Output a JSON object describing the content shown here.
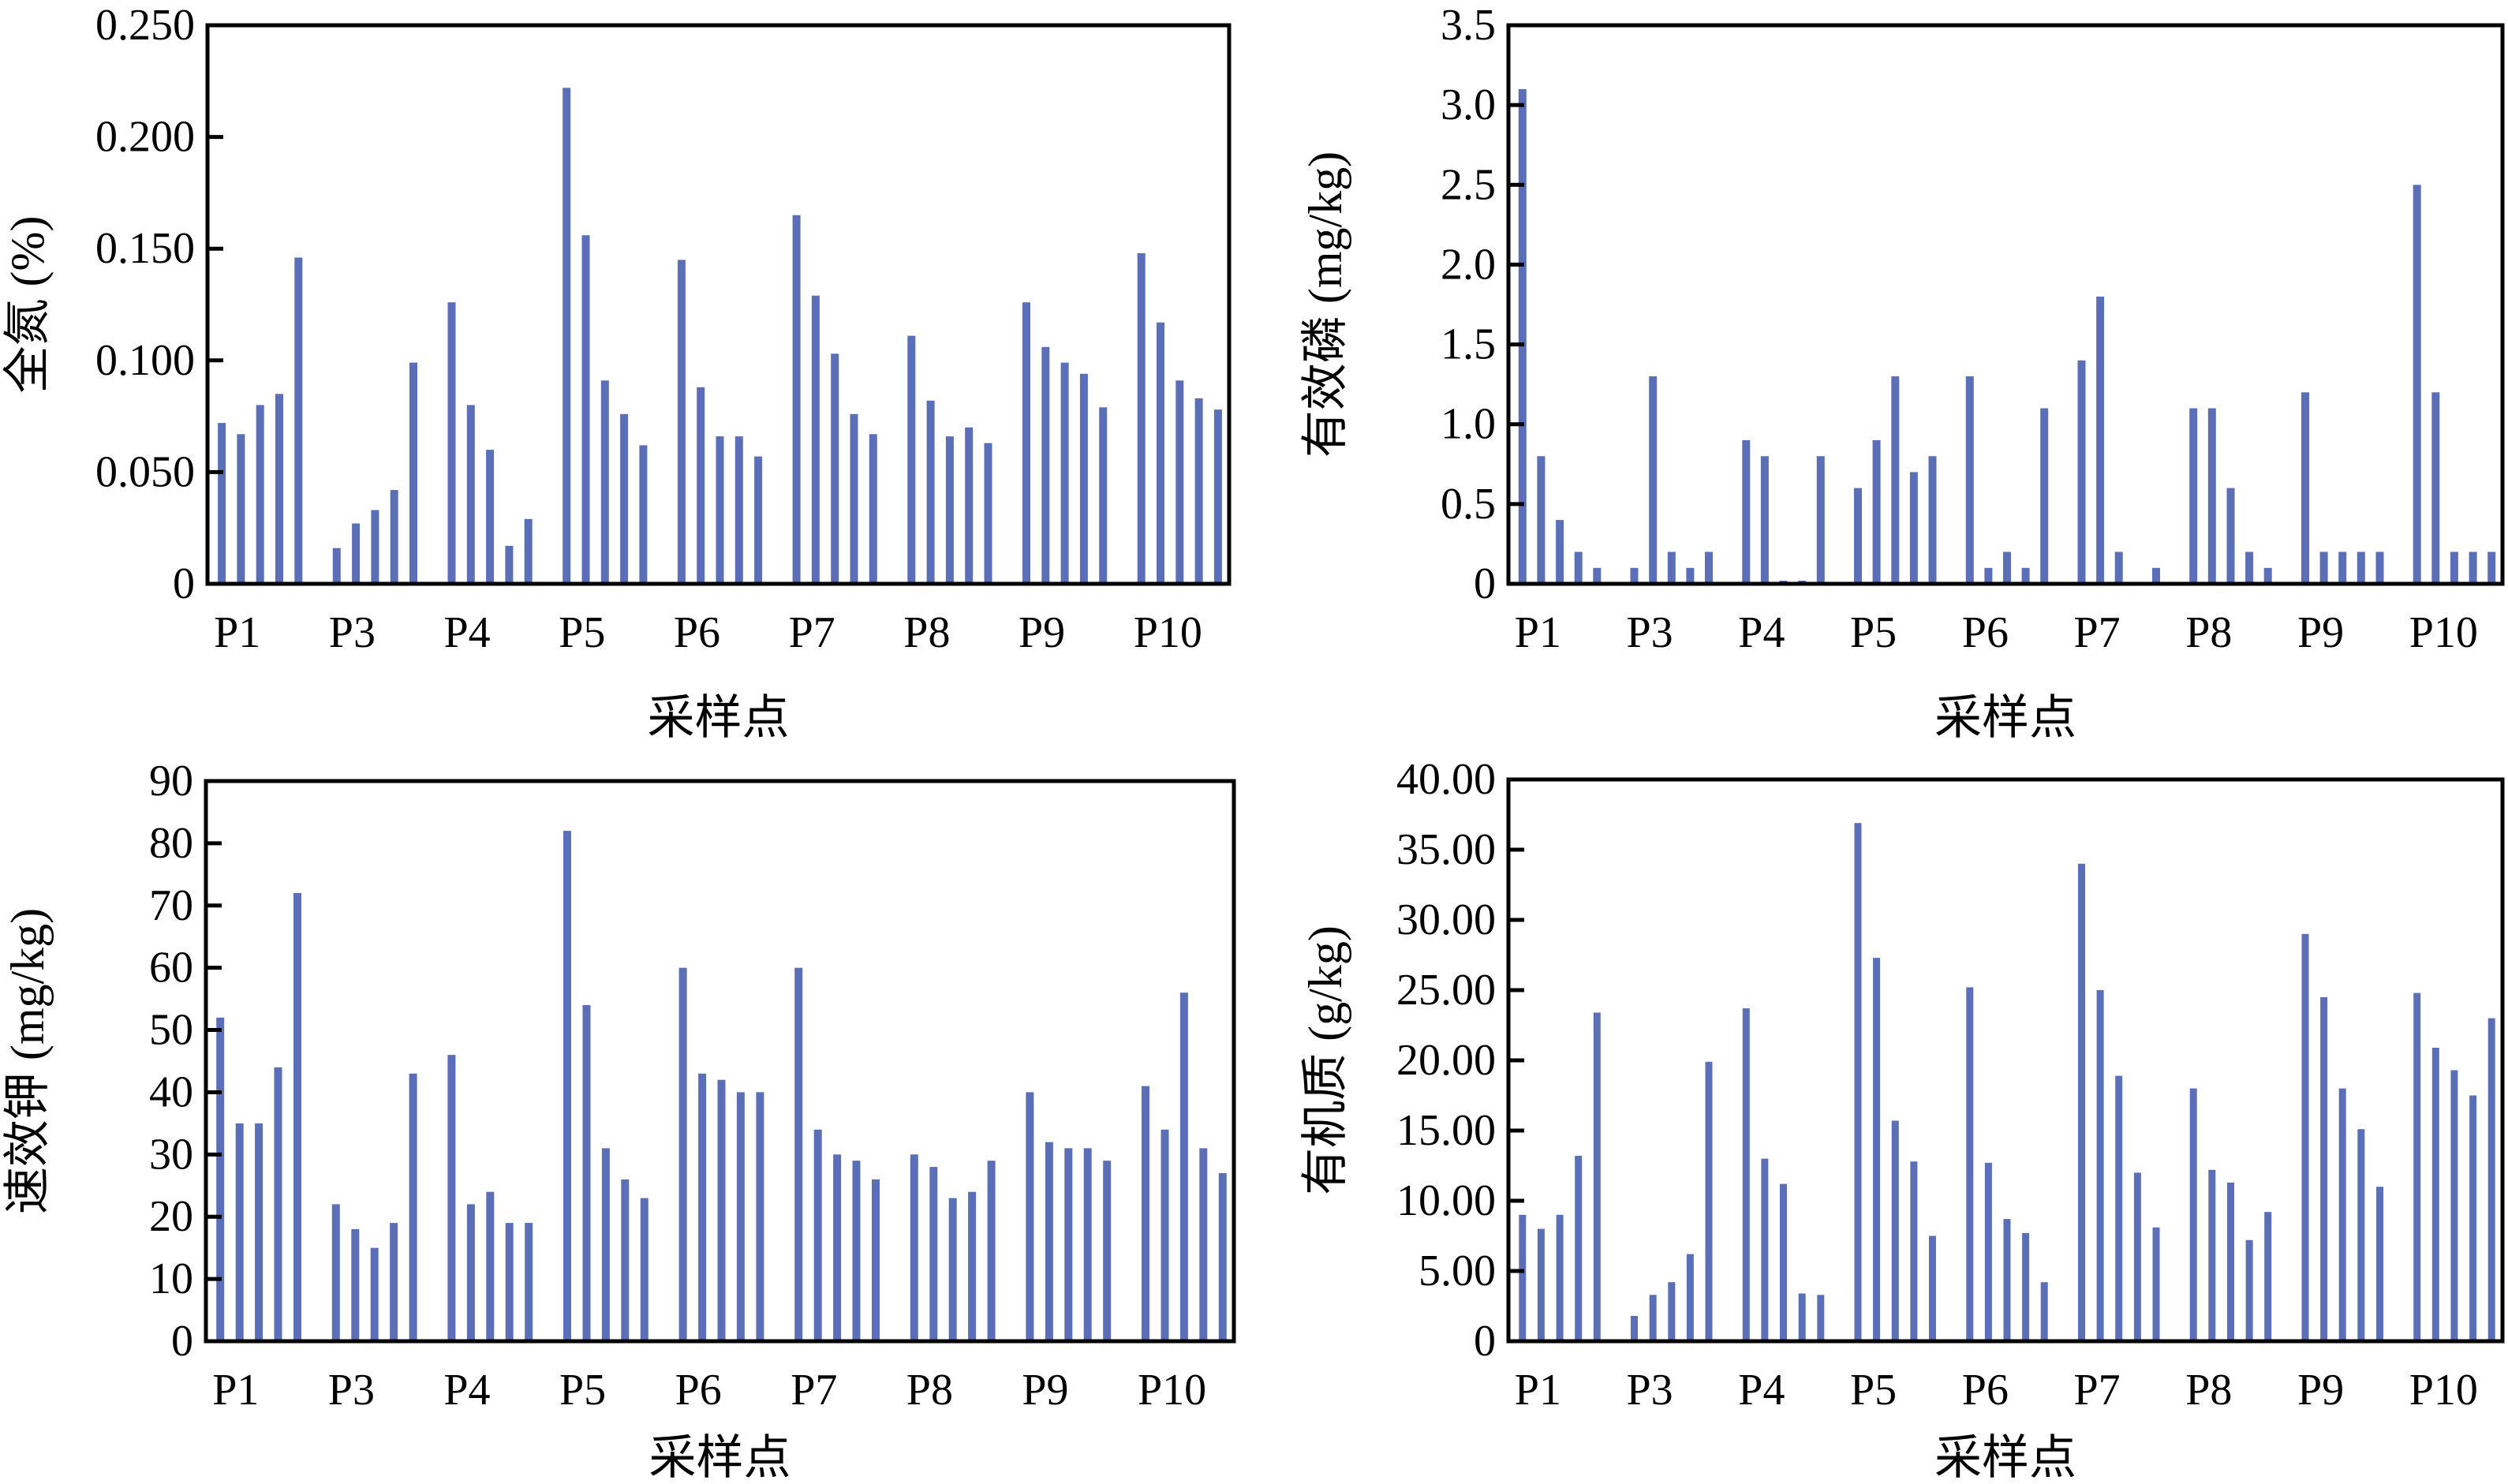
{
  "chart_data": [
    {
      "type": "bar",
      "panel": "top-left",
      "title": "",
      "xlabel": "采样点",
      "ylabel": "全氮 (%)",
      "ylim": [
        0,
        0.25
      ],
      "yticks": [
        "0",
        "0.050",
        "0.100",
        "0.150",
        "0.200",
        "0.250"
      ],
      "ytick_values": [
        0,
        0.05,
        0.1,
        0.15,
        0.2,
        0.25
      ],
      "categories": [
        "P1",
        "P3",
        "P4",
        "P5",
        "P6",
        "P7",
        "P8",
        "P9",
        "P10"
      ],
      "bars_per_group": 5,
      "color": "#5a6fb7",
      "grid": false,
      "values": [
        [
          0.072,
          0.067,
          0.08,
          0.085,
          0.146
        ],
        [
          0.016,
          0.027,
          0.033,
          0.042,
          0.099
        ],
        [
          0.126,
          0.08,
          0.06,
          0.017,
          0.029
        ],
        [
          0.222,
          0.156,
          0.091,
          0.076,
          0.062
        ],
        [
          0.145,
          0.088,
          0.066,
          0.066,
          0.057
        ],
        [
          0.165,
          0.129,
          0.103,
          0.076,
          0.067
        ],
        [
          0.111,
          0.082,
          0.066,
          0.07,
          0.063
        ],
        [
          0.126,
          0.106,
          0.099,
          0.094,
          0.079
        ],
        [
          0.148,
          0.117,
          0.091,
          0.083,
          0.078
        ]
      ]
    },
    {
      "type": "bar",
      "panel": "top-right",
      "title": "",
      "xlabel": "采样点",
      "ylabel": "有效磷 (mg/kg)",
      "ylim": [
        0,
        3.5
      ],
      "yticks": [
        "0",
        "0.5",
        "1.0",
        "1.5",
        "2.0",
        "2.5",
        "3.0",
        "3.5"
      ],
      "ytick_values": [
        0,
        0.5,
        1.0,
        1.5,
        2.0,
        2.5,
        3.0,
        3.5
      ],
      "categories": [
        "P1",
        "P3",
        "P4",
        "P5",
        "P6",
        "P7",
        "P8",
        "P9",
        "P10"
      ],
      "bars_per_group": 5,
      "color": "#5a6fb7",
      "grid": false,
      "values": [
        [
          3.1,
          0.8,
          0.4,
          0.2,
          0.1
        ],
        [
          0.1,
          1.3,
          0.2,
          0.1,
          0.2
        ],
        [
          0.9,
          0.8,
          0.02,
          0.02,
          0.8
        ],
        [
          0.6,
          0.9,
          1.3,
          0.7,
          0.8
        ],
        [
          1.3,
          0.1,
          0.2,
          0.1,
          1.1
        ],
        [
          1.4,
          1.8,
          0.2,
          0,
          0.1
        ],
        [
          1.1,
          1.1,
          0.6,
          0.2,
          0.1
        ],
        [
          1.2,
          0.2,
          0.2,
          0.2,
          0.2
        ],
        [
          2.5,
          1.2,
          0.2,
          0.2,
          0.2
        ]
      ]
    },
    {
      "type": "bar",
      "panel": "bottom-left",
      "title": "",
      "xlabel": "采样点",
      "ylabel": "速效钾 (mg/kg)",
      "ylim": [
        0,
        90
      ],
      "yticks": [
        "0",
        "10",
        "20",
        "30",
        "40",
        "50",
        "60",
        "70",
        "80",
        "90"
      ],
      "ytick_values": [
        0,
        10,
        20,
        30,
        40,
        50,
        60,
        70,
        80,
        90
      ],
      "categories": [
        "P1",
        "P3",
        "P4",
        "P5",
        "P6",
        "P7",
        "P8",
        "P9",
        "P10"
      ],
      "bars_per_group": 5,
      "color": "#5a6fb7",
      "grid": false,
      "values": [
        [
          52,
          35,
          35,
          44,
          72
        ],
        [
          22,
          18,
          15,
          19,
          43
        ],
        [
          46,
          22,
          24,
          19,
          19
        ],
        [
          82,
          54,
          31,
          26,
          23
        ],
        [
          60,
          43,
          42,
          40,
          40
        ],
        [
          60,
          34,
          30,
          29,
          26
        ],
        [
          30,
          28,
          23,
          24,
          29
        ],
        [
          40,
          32,
          31,
          31,
          29
        ],
        [
          41,
          34,
          56,
          31,
          27
        ]
      ]
    },
    {
      "type": "bar",
      "panel": "bottom-right",
      "title": "",
      "xlabel": "采样点",
      "ylabel": "有机质 (g/kg)",
      "ylim": [
        0,
        40
      ],
      "yticks": [
        "0",
        "5.00",
        "10.00",
        "15.00",
        "20.00",
        "25.00",
        "30.00",
        "35.00",
        "40.00"
      ],
      "ytick_values": [
        0,
        5,
        10,
        15,
        20,
        25,
        30,
        35,
        40
      ],
      "categories": [
        "P1",
        "P3",
        "P4",
        "P5",
        "P6",
        "P7",
        "P8",
        "P9",
        "P10"
      ],
      "bars_per_group": 5,
      "color": "#5a6fb7",
      "grid": false,
      "values": [
        [
          9.0,
          8.0,
          9.0,
          13.2,
          23.4
        ],
        [
          1.8,
          3.3,
          4.2,
          6.2,
          19.9
        ],
        [
          23.7,
          13.0,
          11.2,
          3.4,
          3.3
        ],
        [
          36.9,
          27.3,
          15.7,
          12.8,
          7.5
        ],
        [
          25.2,
          12.7,
          8.7,
          7.7,
          4.2
        ],
        [
          34.0,
          25.0,
          18.9,
          12.0,
          8.1
        ],
        [
          18.0,
          12.2,
          11.3,
          7.2,
          9.2
        ],
        [
          29.0,
          24.5,
          18.0,
          15.1,
          11.0
        ],
        [
          24.8,
          20.9,
          19.3,
          17.5,
          23.0
        ]
      ]
    }
  ]
}
